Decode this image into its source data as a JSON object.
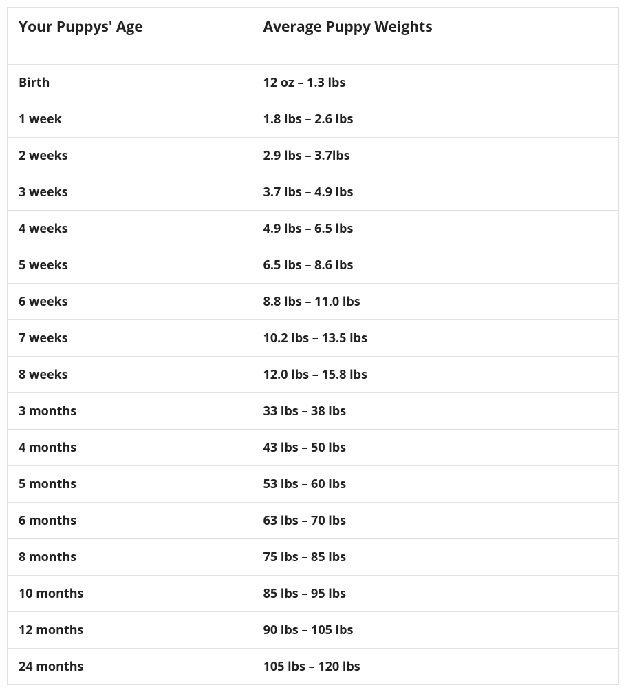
{
  "table": {
    "columns": [
      {
        "label": "Your Puppys' Age",
        "width": "40%"
      },
      {
        "label": "Average Puppy Weights",
        "width": "60%"
      }
    ],
    "rows": [
      {
        "age": "Birth",
        "weight": "12 oz – 1.3 lbs"
      },
      {
        "age": "1 week",
        "weight": "1.8 lbs – 2.6 lbs"
      },
      {
        "age": "2 weeks",
        "weight": "2.9 lbs – 3.7lbs"
      },
      {
        "age": "3 weeks",
        "weight": "3.7 lbs – 4.9 lbs"
      },
      {
        "age": "4 weeks",
        "weight": "4.9 lbs – 6.5 lbs"
      },
      {
        "age": "5 weeks",
        "weight": "6.5 lbs – 8.6 lbs"
      },
      {
        "age": "6 weeks",
        "weight": "8.8 lbs – 11.0 lbs"
      },
      {
        "age": "7 weeks",
        "weight": "10.2 lbs – 13.5 lbs"
      },
      {
        "age": "8 weeks",
        "weight": "12.0 lbs – 15.8 lbs"
      },
      {
        "age": "3 months",
        "weight": "33 lbs – 38 lbs"
      },
      {
        "age": "4 months",
        "weight": "43 lbs – 50 lbs"
      },
      {
        "age": "5 months",
        "weight": "53 lbs – 60 lbs"
      },
      {
        "age": "6 months",
        "weight": "63 lbs – 70 lbs"
      },
      {
        "age": "8 months",
        "weight": "75 lbs – 85 lbs"
      },
      {
        "age": "10 months",
        "weight": "85 lbs – 95 lbs"
      },
      {
        "age": "12 months",
        "weight": "90 lbs – 105 lbs"
      },
      {
        "age": "24 months",
        "weight": "105 lbs – 120 lbs"
      }
    ],
    "styling": {
      "border_color": "#e0e0e0",
      "background_color": "#ffffff",
      "text_color": "#222222",
      "header_fontsize": 21,
      "cell_fontsize": 18,
      "font_weight": 700,
      "font_family": "Open Sans, Segoe UI, Arial, sans-serif"
    }
  }
}
